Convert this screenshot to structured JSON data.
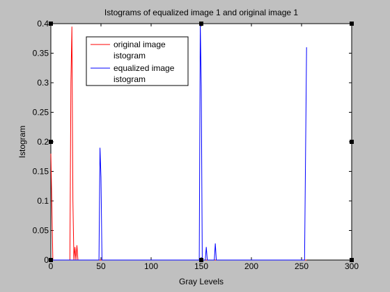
{
  "chart_data": {
    "type": "line",
    "title": "Istograms of equalized image 1 and original image 1",
    "xlabel": "Gray Levels",
    "ylabel": "Istogram",
    "xlim": [
      0,
      300
    ],
    "ylim": [
      0,
      0.4
    ],
    "xticks": [
      0,
      50,
      100,
      150,
      200,
      250,
      300
    ],
    "xtick_labels": [
      "0",
      "50",
      "100",
      "150",
      "200",
      "250",
      "300"
    ],
    "yticks": [
      0,
      0.05,
      0.1,
      0.15,
      0.2,
      0.25,
      0.3,
      0.35,
      0.4
    ],
    "ytick_labels": [
      "0",
      "0.05",
      "0.1",
      "0.15",
      "0.2",
      "0.25",
      "0.3",
      "0.35",
      "0.4"
    ],
    "grid": false,
    "legend_position": "top-left",
    "background": "#ffffff",
    "figure_background": "#c0c0c0",
    "series": [
      {
        "name": "original image\nistogram",
        "color": "#ff0000",
        "points": [
          [
            0,
            0.18
          ],
          [
            1,
            0.095
          ],
          [
            2,
            0
          ],
          [
            19,
            0
          ],
          [
            20,
            0.3
          ],
          [
            21,
            0.395
          ],
          [
            22,
            0.1
          ],
          [
            23,
            0
          ],
          [
            24,
            0.022
          ],
          [
            25,
            0
          ],
          [
            26,
            0.025
          ],
          [
            27,
            0
          ],
          [
            255,
            0
          ]
        ]
      },
      {
        "name": "equalized image\nistogram",
        "color": "#0000ff",
        "points": [
          [
            0,
            0
          ],
          [
            48,
            0
          ],
          [
            49,
            0.19
          ],
          [
            50,
            0.14
          ],
          [
            51,
            0
          ],
          [
            148,
            0
          ],
          [
            149,
            0.4
          ],
          [
            150,
            0.295
          ],
          [
            151,
            0
          ],
          [
            154,
            0
          ],
          [
            155,
            0.022
          ],
          [
            156,
            0
          ],
          [
            163,
            0
          ],
          [
            164,
            0.028
          ],
          [
            165,
            0
          ],
          [
            253,
            0
          ],
          [
            254,
            0.18
          ],
          [
            255,
            0.36
          ]
        ]
      }
    ],
    "markers": [
      {
        "x": 0,
        "y": 0.4
      },
      {
        "x": 0,
        "y": 0.2
      },
      {
        "x": 0,
        "y": 0
      },
      {
        "x": 150,
        "y": 0.4
      },
      {
        "x": 150,
        "y": 0
      },
      {
        "x": 300,
        "y": 0.4
      },
      {
        "x": 300,
        "y": 0.2
      },
      {
        "x": 300,
        "y": 0
      }
    ]
  }
}
